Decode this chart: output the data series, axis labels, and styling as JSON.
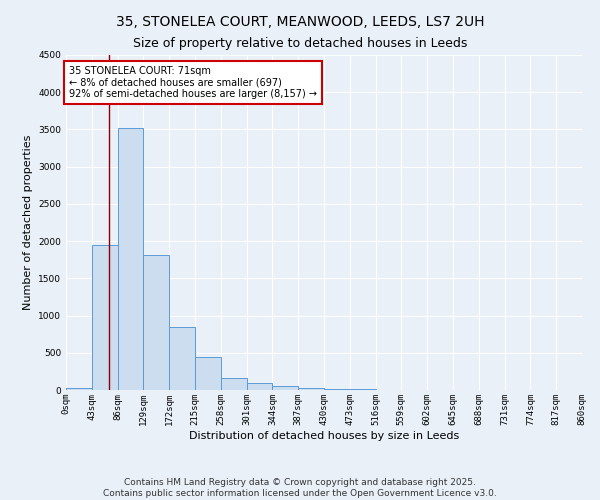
{
  "title_line1": "35, STONELEA COURT, MEANWOOD, LEEDS, LS7 2UH",
  "title_line2": "Size of property relative to detached houses in Leeds",
  "xlabel": "Distribution of detached houses by size in Leeds",
  "ylabel": "Number of detached properties",
  "bar_edges": [
    0,
    43,
    86,
    129,
    172,
    215,
    258,
    301,
    344,
    387,
    430,
    473,
    516,
    559,
    602,
    645,
    688,
    731,
    774,
    817,
    860
  ],
  "bar_heights": [
    30,
    1950,
    3520,
    1810,
    840,
    450,
    155,
    95,
    50,
    28,
    15,
    8,
    3,
    2,
    1,
    1,
    0,
    0,
    0,
    0
  ],
  "bar_fill": "#ccddf0",
  "bar_edge": "#5b9bd5",
  "vline_x": 71,
  "vline_color": "#8b0000",
  "annotation_text": "35 STONELEA COURT: 71sqm\n← 8% of detached houses are smaller (697)\n92% of semi-detached houses are larger (8,157) →",
  "annotation_box_color": "#ffffff",
  "annotation_box_edge": "#cc0000",
  "background_color": "#eaf0f8",
  "grid_color": "#ffffff",
  "ylim": [
    0,
    4500
  ],
  "xlim": [
    0,
    860
  ],
  "tick_labels": [
    "0sqm",
    "43sqm",
    "86sqm",
    "129sqm",
    "172sqm",
    "215sqm",
    "258sqm",
    "301sqm",
    "344sqm",
    "387sqm",
    "430sqm",
    "473sqm",
    "516sqm",
    "559sqm",
    "602sqm",
    "645sqm",
    "688sqm",
    "731sqm",
    "774sqm",
    "817sqm",
    "860sqm"
  ],
  "footnote": "Contains HM Land Registry data © Crown copyright and database right 2025.\nContains public sector information licensed under the Open Government Licence v3.0.",
  "title_fontsize": 10,
  "subtitle_fontsize": 9,
  "axis_fontsize": 8,
  "tick_fontsize": 6.5,
  "footnote_fontsize": 6.5
}
